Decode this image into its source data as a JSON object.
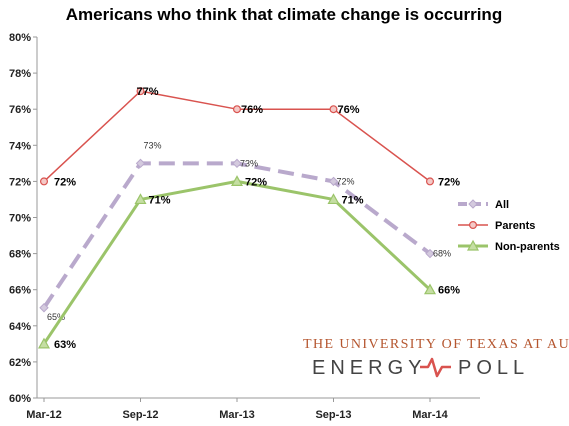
{
  "chart_data": {
    "type": "line",
    "title": "Americans who think that climate change is occurring",
    "categories": [
      "Mar-12",
      "Sep-12",
      "Mar-13",
      "Sep-13",
      "Mar-14"
    ],
    "ylim": [
      60,
      80
    ],
    "yticks": [
      "60%",
      "62%",
      "64%",
      "66%",
      "68%",
      "70%",
      "72%",
      "74%",
      "76%",
      "78%",
      "80%"
    ],
    "grid": false,
    "legend_position": "right",
    "series": [
      {
        "name": "All",
        "values": [
          65,
          73,
          73,
          72,
          68
        ],
        "labels": [
          "65%",
          "73%",
          "73%",
          "72%",
          "68%"
        ],
        "color": "#b9a9cc",
        "style": "dashed",
        "marker": "diamond"
      },
      {
        "name": "Parents",
        "values": [
          72,
          77,
          76,
          76,
          72
        ],
        "labels": [
          "72%",
          "77%",
          "76%",
          "76%",
          "72%"
        ],
        "color": "#d9534f",
        "style": "solid",
        "marker": "circle"
      },
      {
        "name": "Non-parents",
        "values": [
          63,
          71,
          72,
          71,
          66
        ],
        "labels": [
          "63%",
          "71%",
          "72%",
          "71%",
          "66%"
        ],
        "color": "#9bc46a",
        "style": "solid",
        "marker": "triangle"
      }
    ]
  },
  "branding": {
    "line1": "THE UNIVERSITY OF TEXAS AT AUSTIN",
    "word1": "ENERGY",
    "word2": "POLL",
    "accent_color": "#d9534f"
  }
}
